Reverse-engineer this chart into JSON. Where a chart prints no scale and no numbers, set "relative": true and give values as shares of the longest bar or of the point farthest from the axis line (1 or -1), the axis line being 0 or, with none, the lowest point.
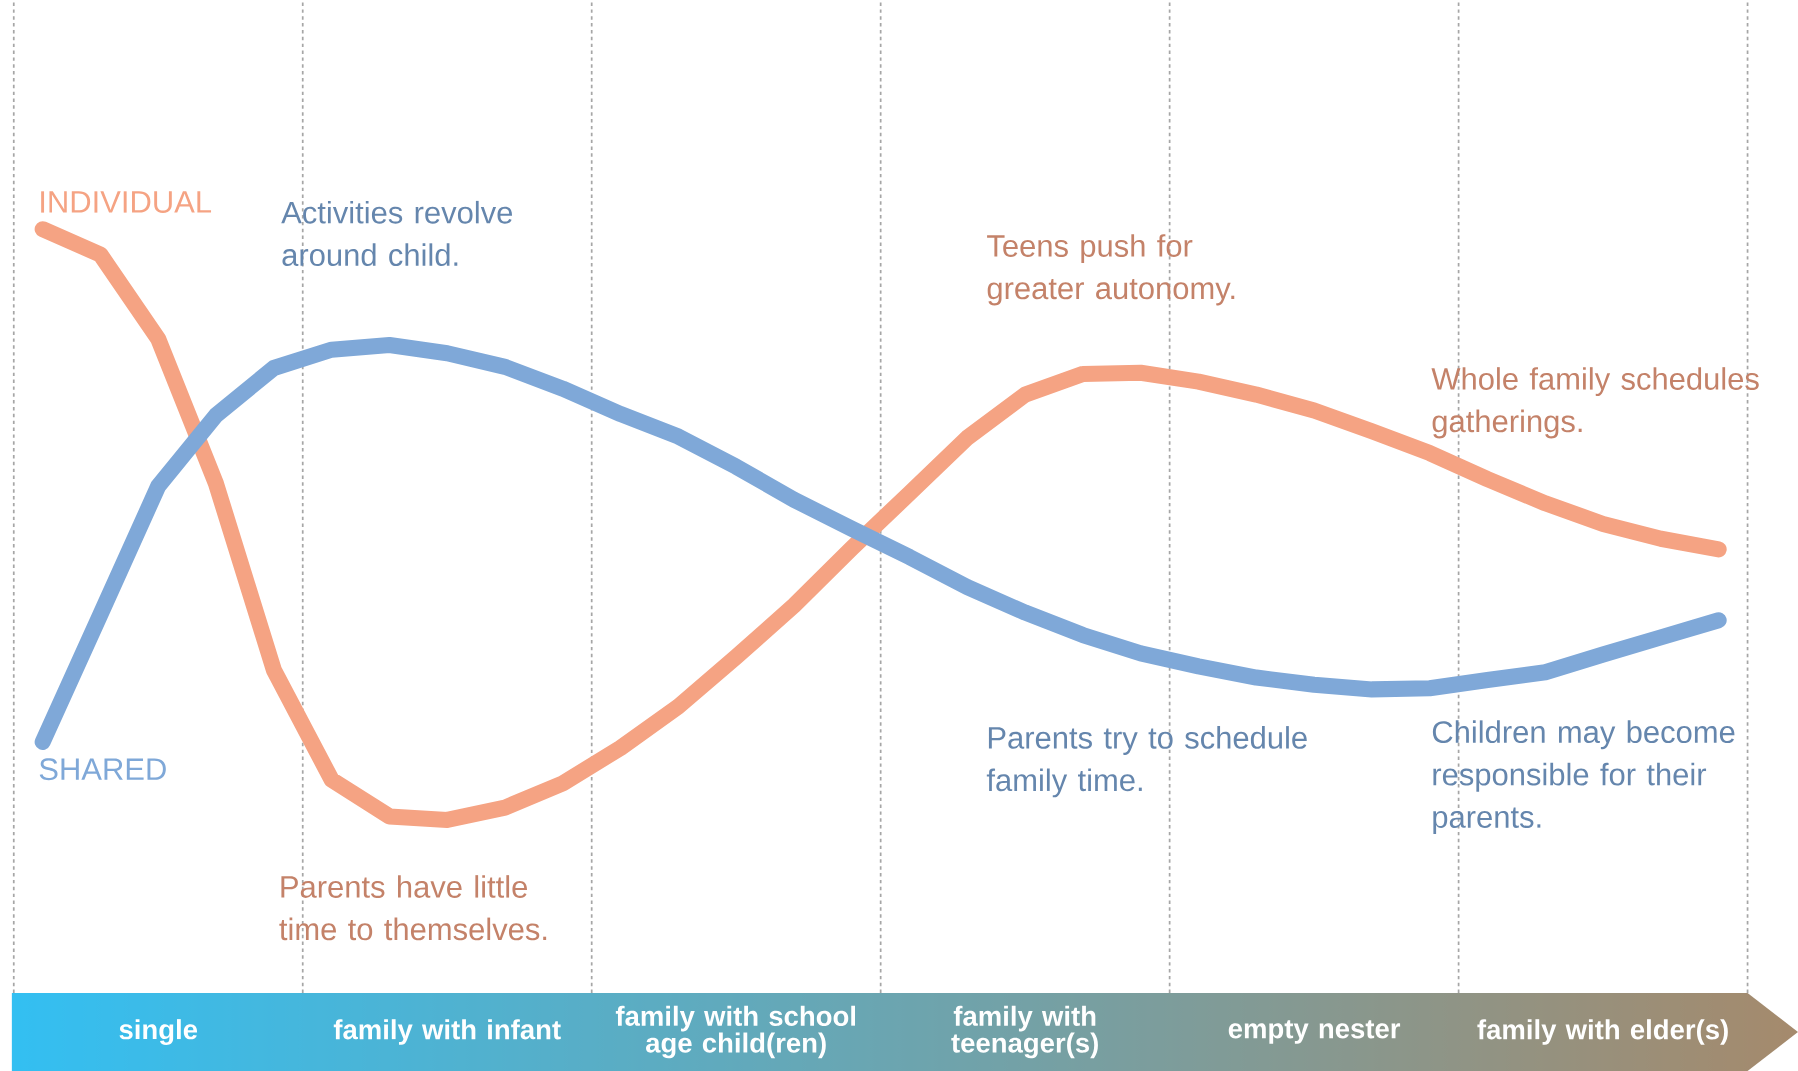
{
  "chart_data": {
    "type": "line",
    "relative": true,
    "legend": false,
    "marker": "none",
    "grid": "x",
    "categories": [
      null,
      null,
      "single",
      null,
      null,
      null,
      null,
      "family with infant",
      null,
      null,
      null,
      null,
      "family with school age child(ren)",
      null,
      null,
      null,
      null,
      "family with teenager(s)",
      null,
      null,
      null,
      null,
      "empty nester",
      null,
      null,
      null,
      null,
      "family with elder(s)",
      null,
      null
    ],
    "series": [
      {
        "name": "INDIVIDUAL",
        "color": "#f5a383",
        "values": [
          1.0,
          0.957,
          0.814,
          0.569,
          0.254,
          0.068,
          0.006,
          0.0,
          0.021,
          0.062,
          0.122,
          0.192,
          0.276,
          0.363,
          0.46,
          0.553,
          0.647,
          0.72,
          0.755,
          0.757,
          0.742,
          0.72,
          0.693,
          0.658,
          0.621,
          0.577,
          0.536,
          0.501,
          0.476,
          0.458
        ]
      },
      {
        "name": "SHARED",
        "color": "#7fa8d8",
        "values": [
          0.132,
          0.348,
          0.565,
          0.685,
          0.765,
          0.796,
          0.804,
          0.79,
          0.767,
          0.73,
          0.687,
          0.649,
          0.598,
          0.542,
          0.493,
          0.445,
          0.394,
          0.351,
          0.313,
          0.282,
          0.26,
          0.241,
          0.229,
          0.221,
          0.223,
          0.237,
          0.25,
          0.28,
          0.309,
          0.338
        ]
      }
    ],
    "annotations": [
      "Activities revolve around child.",
      "Teens push for greater autonomy.",
      "Whole family schedules gatherings.",
      "Parents have little time to themselves.",
      "Parents try to schedule family time.",
      "Children may become responsible for their parents."
    ]
  }
}
